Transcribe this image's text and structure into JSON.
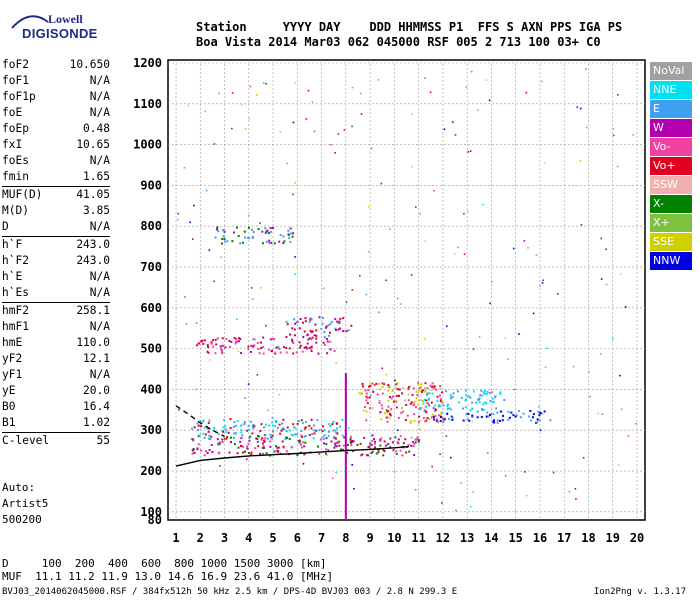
{
  "logo": {
    "line1": "Lowell",
    "line2": "DIGISONDE"
  },
  "header": {
    "line1": "Station     YYYY DAY    DDD HHMMSS P1  FFS S AXN PPS IGA PS",
    "line2": "Boa Vista 2014 Mar03 062 045000 RSF 005 2 713 100 03+ C0"
  },
  "params": [
    {
      "name": "foF2",
      "value": "10.650"
    },
    {
      "name": "foF1",
      "value": "N/A"
    },
    {
      "name": "foF1p",
      "value": "N/A"
    },
    {
      "name": "foE",
      "value": "N/A"
    },
    {
      "name": "foEp",
      "value": "0.48"
    },
    {
      "name": "fxI",
      "value": "10.65"
    },
    {
      "name": "foEs",
      "value": "N/A"
    },
    {
      "name": "fmin",
      "value": "1.65"
    },
    {
      "name": "MUF(D)",
      "value": "41.05",
      "sep": true
    },
    {
      "name": "M(D)",
      "value": "3.85"
    },
    {
      "name": "D",
      "value": "N/A"
    },
    {
      "name": "h`F",
      "value": "243.0",
      "sep": true
    },
    {
      "name": "h`F2",
      "value": "243.0"
    },
    {
      "name": "h`E",
      "value": "N/A"
    },
    {
      "name": "h`Es",
      "value": "N/A"
    },
    {
      "name": "hmF2",
      "value": "258.1",
      "sep": true
    },
    {
      "name": "hmF1",
      "value": "N/A"
    },
    {
      "name": "hmE",
      "value": "110.0"
    },
    {
      "name": "yF2",
      "value": "12.1"
    },
    {
      "name": "yF1",
      "value": "N/A"
    },
    {
      "name": "yE",
      "value": "20.0"
    },
    {
      "name": "B0",
      "value": "16.4"
    },
    {
      "name": "B1",
      "value": "1.02"
    },
    {
      "name": "C-level",
      "value": "55",
      "sep": true
    }
  ],
  "auto": {
    "line1": "Auto:",
    "line2": "Artist5",
    "line3": "500200"
  },
  "bottom": {
    "d_row": "D     100  200  400  600  800 1000 1500 3000 [km]",
    "muf_row": "MUF  11.1 11.2 11.9 13.0 14.6 16.9 23.6 41.0 [MHz]"
  },
  "footer": {
    "left": "BVJ03_2014062045000.RSF / 384fx512h 50 kHz 2.5 km / DPS-4D BVJ03 003 / 2.8 N 299.3 E",
    "right": "Ion2Png v. 1.3.17"
  },
  "legend": [
    {
      "label": "NoVal",
      "color": "#a0a0a0"
    },
    {
      "label": "NNE",
      "color": "#00e0f0"
    },
    {
      "label": "E",
      "color": "#40a0f0"
    },
    {
      "label": "W",
      "color": "#b000b0"
    },
    {
      "label": "Vo-",
      "color": "#f040a0"
    },
    {
      "label": "Vo+",
      "color": "#e00020"
    },
    {
      "label": "SSW",
      "color": "#f0b0b0"
    },
    {
      "label": "X-",
      "color": "#008000"
    },
    {
      "label": "X+",
      "color": "#80c040"
    },
    {
      "label": "SSE",
      "color": "#d0d000"
    },
    {
      "label": "NNW",
      "color": "#0000e0"
    }
  ],
  "chart_data": {
    "type": "scatter",
    "xlabel": "",
    "ylabel": "",
    "xlim": [
      1,
      20
    ],
    "ylim": [
      80,
      1200
    ],
    "x_ticks": [
      1,
      2,
      3,
      4,
      5,
      6,
      7,
      8,
      9,
      10,
      11,
      12,
      13,
      14,
      15,
      16,
      17,
      18,
      19,
      20
    ],
    "y_ticks": [
      100,
      200,
      300,
      400,
      500,
      600,
      700,
      800,
      900,
      1000,
      1100,
      1200
    ],
    "y_tick_labels": [
      "100",
      "200",
      "300",
      "400",
      "500",
      "600",
      "700",
      "800",
      "900",
      "1000",
      "1100",
      "1200"
    ],
    "x_tick_labels": [
      "1",
      "2",
      "3",
      "4",
      "5",
      "6",
      "7",
      "8",
      "9",
      "10",
      "11",
      "12",
      "13",
      "14",
      "15",
      "16",
      "17",
      "18",
      "19",
      "20"
    ],
    "grid": true,
    "extra_tick_label": "80",
    "clusters": [
      {
        "x": [
          1.6,
          11
        ],
        "y": [
          240,
          290
        ],
        "colors": [
          "#e00020",
          "#b000b0",
          "#008000",
          "#f040a0"
        ]
      },
      {
        "x": [
          1.6,
          8
        ],
        "y": [
          280,
          330
        ],
        "colors": [
          "#40a0f0",
          "#00e0f0",
          "#e00020"
        ]
      },
      {
        "x": [
          1.8,
          7.5
        ],
        "y": [
          490,
          530
        ],
        "colors": [
          "#e00020",
          "#b000b0",
          "#f040a0"
        ]
      },
      {
        "x": [
          5.5,
          8.2
        ],
        "y": [
          530,
          580
        ],
        "colors": [
          "#b000b0",
          "#40a0f0",
          "#e00020"
        ]
      },
      {
        "x": [
          2.5,
          5.8
        ],
        "y": [
          760,
          800
        ],
        "colors": [
          "#40a0f0",
          "#b000b0",
          "#008000"
        ]
      },
      {
        "x": [
          11.5,
          16.5
        ],
        "y": [
          320,
          350
        ],
        "colors": [
          "#0000e0",
          "#40a0f0"
        ]
      },
      {
        "x": [
          11,
          14.5
        ],
        "y": [
          350,
          400
        ],
        "colors": [
          "#40a0f0",
          "#00e0f0"
        ]
      },
      {
        "x": [
          8.5,
          12
        ],
        "y": [
          320,
          420
        ],
        "colors": [
          "#e00020",
          "#f040a0",
          "#d0d000"
        ]
      }
    ],
    "vertical_spike": {
      "x": 8,
      "y_from": 80,
      "y_to": 440,
      "color": "#b000b0"
    },
    "curves": [
      {
        "name": "",
        "color": "#000000",
        "dashed": false,
        "x": [
          1.0,
          2,
          3,
          4,
          5,
          6,
          7,
          8,
          9,
          10,
          10.6
        ],
        "y": [
          212,
          226,
          232,
          237,
          240,
          243,
          247,
          250,
          253,
          257,
          260
        ]
      },
      {
        "name": "",
        "color": "#000000",
        "dashed": true,
        "x": [
          1.0,
          1.5,
          2,
          2.5,
          3
        ],
        "y": [
          360,
          340,
          318,
          300,
          285
        ]
      }
    ]
  }
}
